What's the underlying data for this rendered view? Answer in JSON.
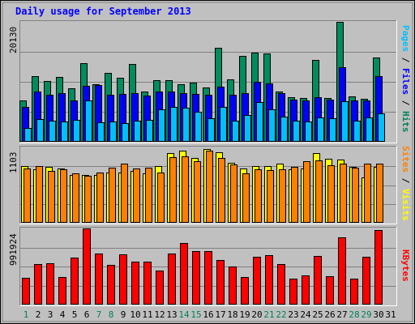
{
  "chart_data": {
    "type": "bar",
    "title": "Daily usage for September 2013",
    "days": [
      "1",
      "2",
      "3",
      "4",
      "5",
      "6",
      "7",
      "8",
      "9",
      "10",
      "11",
      "12",
      "13",
      "14",
      "15",
      "16",
      "17",
      "18",
      "19",
      "20",
      "21",
      "22",
      "23",
      "24",
      "25",
      "26",
      "27",
      "28",
      "29",
      "30",
      "31"
    ],
    "weekend_days": [
      "1",
      "7",
      "8",
      "14",
      "15",
      "21",
      "22",
      "28",
      "29"
    ],
    "panels": [
      {
        "id": "hits",
        "max_label": "20130",
        "ymax": 20130,
        "label_parts": [
          {
            "text": "Pages",
            "color": "#00c0ff"
          },
          {
            "text": " / ",
            "color": "#000000"
          },
          {
            "text": "Files",
            "color": "#0000ff"
          },
          {
            "text": " / ",
            "color": "#000000"
          },
          {
            "text": "Hits",
            "color": "#00805c"
          }
        ],
        "series": [
          {
            "name": "Hits",
            "color": "#008c5e",
            "values": [
              7000,
              11000,
              10200,
              10900,
              9000,
              13200,
              9700,
              11500,
              10700,
              13100,
              8500,
              10300,
              10400,
              9700,
              9900,
              9100,
              15800,
              10500,
              14400,
              15000,
              14800,
              8400,
              7500,
              7400,
              13800,
              7400,
              20130,
              7600,
              7200,
              14200,
              null
            ]
          },
          {
            "name": "Files",
            "color": "#0000ff",
            "values": [
              5800,
              8400,
              7900,
              8100,
              7000,
              9400,
              9500,
              7900,
              8000,
              8200,
              7800,
              8400,
              8500,
              8100,
              8000,
              7900,
              9300,
              7900,
              8200,
              10100,
              9800,
              8200,
              7100,
              6900,
              7500,
              7100,
              12500,
              6900,
              6900,
              11000,
              null
            ]
          },
          {
            "name": "Pages",
            "color": "#00bfff",
            "values": [
              2300,
              3800,
              3600,
              3400,
              3700,
              6900,
              3300,
              3400,
              3100,
              3500,
              3700,
              5400,
              5800,
              5700,
              5100,
              4000,
              5800,
              3500,
              4500,
              6600,
              5500,
              4200,
              3600,
              3400,
              4100,
              3900,
              6800,
              3500,
              4100,
              4800,
              null
            ]
          }
        ]
      },
      {
        "id": "visits",
        "max_label": "1103",
        "ymax": 1103,
        "label_parts": [
          {
            "text": "Sites",
            "color": "#ff8000"
          },
          {
            "text": " / ",
            "color": "#000000"
          },
          {
            "text": "Visits",
            "color": "#ffff00"
          }
        ],
        "series": [
          {
            "name": "Visits",
            "color": "#ffff00",
            "values": [
              830,
              780,
              820,
              790,
              700,
              700,
              700,
              730,
              740,
              760,
              720,
              830,
              1020,
              1060,
              950,
              1080,
              1030,
              880,
              800,
              830,
              830,
              870,
              780,
              790,
              1020,
              940,
              920,
              820,
              670,
              820,
              null
            ]
          },
          {
            "name": "Sites",
            "color": "#ff8000",
            "values": [
              790,
              830,
              760,
              780,
              720,
              690,
              740,
              810,
              870,
              790,
              810,
              740,
              960,
              970,
              900,
              1060,
              950,
              850,
              720,
              780,
              770,
              780,
              820,
              900,
              910,
              840,
              870,
              810,
              860,
              870,
              null
            ]
          }
        ]
      },
      {
        "id": "kbytes",
        "max_label": "991924",
        "ymax": 991924,
        "label_parts": [
          {
            "text": "KBytes",
            "color": "#ff0000"
          }
        ],
        "series": [
          {
            "name": "KBytes",
            "color": "#ff0000",
            "values": [
              350000,
              530000,
              540000,
              360000,
              610000,
              991924,
              660000,
              520000,
              650000,
              560000,
              560000,
              440000,
              670000,
              800000,
              700000,
              700000,
              580000,
              500000,
              360000,
              620000,
              640000,
              530000,
              340000,
              380000,
              630000,
              370000,
              880000,
              340000,
              620000,
              970000,
              null
            ]
          }
        ]
      }
    ]
  }
}
